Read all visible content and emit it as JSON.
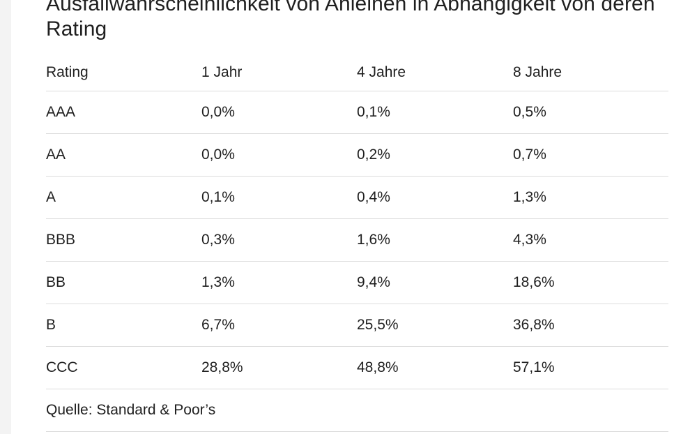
{
  "title": "Ausfallwahrscheinlichkeit von Anleihen in Abhängigkeit von deren Rating",
  "table": {
    "headers": [
      "Rating",
      "1 Jahr",
      "4 Jahre",
      "8 Jahre"
    ],
    "rows": [
      [
        "AAA",
        "0,0%",
        "0,1%",
        "0,5%"
      ],
      [
        "AA",
        "0,0%",
        "0,2%",
        "0,7%"
      ],
      [
        "A",
        "0,1%",
        "0,4%",
        "1,3%"
      ],
      [
        "BBB",
        "0,3%",
        "1,6%",
        "4,3%"
      ],
      [
        "BB",
        "1,3%",
        "9,4%",
        "18,6%"
      ],
      [
        "B",
        "6,7%",
        "25,5%",
        "36,8%"
      ],
      [
        "CCC",
        "28,8%",
        "48,8%",
        "57,1%"
      ]
    ]
  },
  "source": "Quelle: Standard & Poor’s"
}
